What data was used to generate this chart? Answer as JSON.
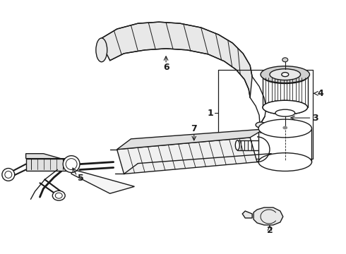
{
  "background_color": "#ffffff",
  "line_color": "#1a1a1a",
  "lw": 1.0,
  "fig_w": 4.9,
  "fig_h": 3.6,
  "dpi": 100
}
